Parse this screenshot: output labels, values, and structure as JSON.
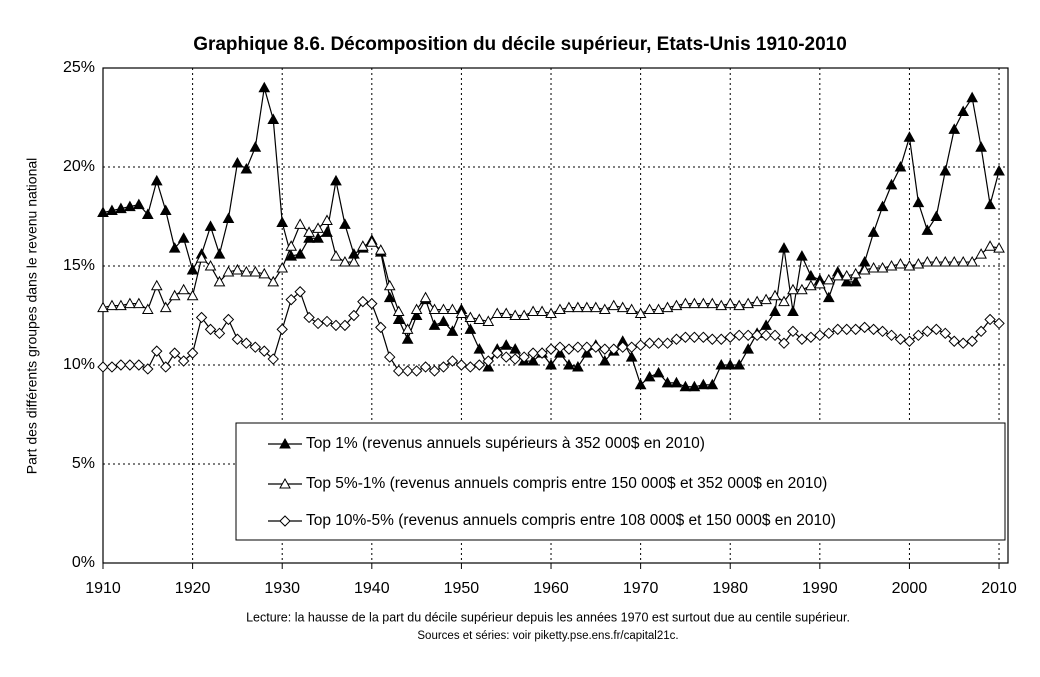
{
  "chart_data": {
    "type": "line",
    "title": "Graphique 8.6. Décomposition du décile supérieur, Etats-Unis 1910-2010",
    "y_label": "Part des différents groupes dans le revenu national",
    "notes": [
      "Lecture: la hausse de la part du décile supérieur depuis les années 1970 est surtout due au centile supérieur.",
      "Sources et séries: voir piketty.pse.ens.fr/capital21c."
    ],
    "x": [
      1910,
      1911,
      1912,
      1913,
      1914,
      1915,
      1916,
      1917,
      1918,
      1919,
      1920,
      1921,
      1922,
      1923,
      1924,
      1925,
      1926,
      1927,
      1928,
      1929,
      1930,
      1931,
      1932,
      1933,
      1934,
      1935,
      1936,
      1937,
      1938,
      1939,
      1940,
      1941,
      1942,
      1943,
      1944,
      1945,
      1946,
      1947,
      1948,
      1949,
      1950,
      1951,
      1952,
      1953,
      1954,
      1955,
      1956,
      1957,
      1958,
      1959,
      1960,
      1961,
      1962,
      1963,
      1964,
      1965,
      1966,
      1967,
      1968,
      1969,
      1970,
      1971,
      1972,
      1973,
      1974,
      1975,
      1976,
      1977,
      1978,
      1979,
      1980,
      1981,
      1982,
      1983,
      1984,
      1985,
      1986,
      1987,
      1988,
      1989,
      1990,
      1991,
      1992,
      1993,
      1994,
      1995,
      1996,
      1997,
      1998,
      1999,
      2000,
      2001,
      2002,
      2003,
      2004,
      2005,
      2006,
      2007,
      2008,
      2009,
      2010
    ],
    "series": [
      {
        "name": "Top 1% (revenus annuels supérieurs à 352 000$ en 2010)",
        "color": "#000000",
        "marker": "filled-triangle",
        "values": [
          17.7,
          17.8,
          17.9,
          18.0,
          18.1,
          17.6,
          19.3,
          17.8,
          15.9,
          16.4,
          14.8,
          15.6,
          17.0,
          15.6,
          17.4,
          20.2,
          19.9,
          21.0,
          24.0,
          22.4,
          17.2,
          15.5,
          15.6,
          16.4,
          16.4,
          16.7,
          19.3,
          17.1,
          15.6,
          15.9,
          16.3,
          15.7,
          13.4,
          12.3,
          11.3,
          12.5,
          13.3,
          12.0,
          12.2,
          11.7,
          12.8,
          11.8,
          10.8,
          9.9,
          10.8,
          11.0,
          10.8,
          10.2,
          10.2,
          10.6,
          10.0,
          10.6,
          10.0,
          9.9,
          10.6,
          11.0,
          10.2,
          10.7,
          11.2,
          10.4,
          9.0,
          9.4,
          9.6,
          9.1,
          9.1,
          8.9,
          8.9,
          9.0,
          9.0,
          10.0,
          10.0,
          10.0,
          10.8,
          11.6,
          12.0,
          12.7,
          15.9,
          12.7,
          15.5,
          14.5,
          14.3,
          13.4,
          14.7,
          14.2,
          14.2,
          15.2,
          16.7,
          18.0,
          19.1,
          20.0,
          21.5,
          18.2,
          16.8,
          17.5,
          19.8,
          21.9,
          22.8,
          23.5,
          21.0,
          18.1,
          19.8
        ]
      },
      {
        "name": "Top 5%-1% (revenus annuels compris entre 150 000$ et 352 000$ en 2010)",
        "color": "#000000",
        "marker": "open-triangle",
        "values": [
          12.9,
          13.0,
          13.0,
          13.1,
          13.1,
          12.8,
          14.0,
          12.9,
          13.5,
          13.8,
          13.5,
          15.4,
          15.0,
          14.2,
          14.7,
          14.8,
          14.7,
          14.7,
          14.6,
          14.2,
          14.9,
          16.0,
          17.1,
          16.7,
          16.9,
          17.3,
          15.5,
          15.2,
          15.2,
          16.0,
          16.2,
          15.8,
          14.0,
          12.7,
          11.8,
          12.8,
          13.4,
          12.8,
          12.8,
          12.8,
          12.6,
          12.4,
          12.3,
          12.2,
          12.6,
          12.6,
          12.5,
          12.5,
          12.7,
          12.7,
          12.6,
          12.8,
          12.9,
          12.9,
          12.9,
          12.9,
          12.8,
          13.0,
          12.9,
          12.8,
          12.6,
          12.8,
          12.8,
          12.9,
          13.0,
          13.1,
          13.1,
          13.1,
          13.1,
          13.0,
          13.1,
          13.0,
          13.1,
          13.2,
          13.3,
          13.5,
          13.2,
          13.8,
          13.8,
          14.0,
          14.1,
          14.3,
          14.5,
          14.5,
          14.6,
          14.8,
          14.9,
          14.9,
          15.0,
          15.1,
          15.0,
          15.1,
          15.2,
          15.2,
          15.2,
          15.2,
          15.2,
          15.2,
          15.6,
          16.0,
          15.9
        ]
      },
      {
        "name": "Top 10%-5% (revenus annuels compris entre 108 000$ et 150 000$ en 2010)",
        "color": "#000000",
        "marker": "open-diamond",
        "values": [
          9.9,
          9.9,
          10.0,
          10.0,
          10.0,
          9.8,
          10.7,
          9.9,
          10.6,
          10.2,
          10.6,
          12.4,
          11.8,
          11.6,
          12.3,
          11.3,
          11.1,
          10.9,
          10.7,
          10.3,
          11.8,
          13.3,
          13.7,
          12.4,
          12.1,
          12.2,
          12.0,
          12.0,
          12.5,
          13.2,
          13.1,
          11.9,
          10.4,
          9.7,
          9.7,
          9.7,
          9.9,
          9.7,
          9.9,
          10.2,
          10.0,
          9.9,
          10.0,
          10.2,
          10.6,
          10.4,
          10.3,
          10.4,
          10.6,
          10.6,
          10.8,
          10.9,
          10.8,
          10.9,
          10.9,
          10.9,
          10.8,
          10.8,
          10.9,
          10.9,
          11.0,
          11.1,
          11.1,
          11.1,
          11.3,
          11.4,
          11.4,
          11.4,
          11.3,
          11.3,
          11.4,
          11.5,
          11.5,
          11.5,
          11.5,
          11.5,
          11.1,
          11.7,
          11.3,
          11.4,
          11.5,
          11.6,
          11.8,
          11.8,
          11.8,
          11.9,
          11.8,
          11.7,
          11.5,
          11.3,
          11.2,
          11.5,
          11.7,
          11.8,
          11.6,
          11.2,
          11.1,
          11.2,
          11.7,
          12.3,
          12.1
        ]
      }
    ],
    "xlim": [
      1910,
      2011
    ],
    "xticks": [
      1910,
      1920,
      1930,
      1940,
      1950,
      1960,
      1970,
      1980,
      1990,
      2000,
      2010
    ],
    "ylim": [
      0,
      25
    ],
    "yticks": [
      {
        "value": 0,
        "label": "0%"
      },
      {
        "value": 5,
        "label": "5%"
      },
      {
        "value": 10,
        "label": "10%"
      },
      {
        "value": 15,
        "label": "15%"
      },
      {
        "value": 20,
        "label": "20%"
      },
      {
        "value": 25,
        "label": "25%"
      }
    ],
    "grid": true
  }
}
